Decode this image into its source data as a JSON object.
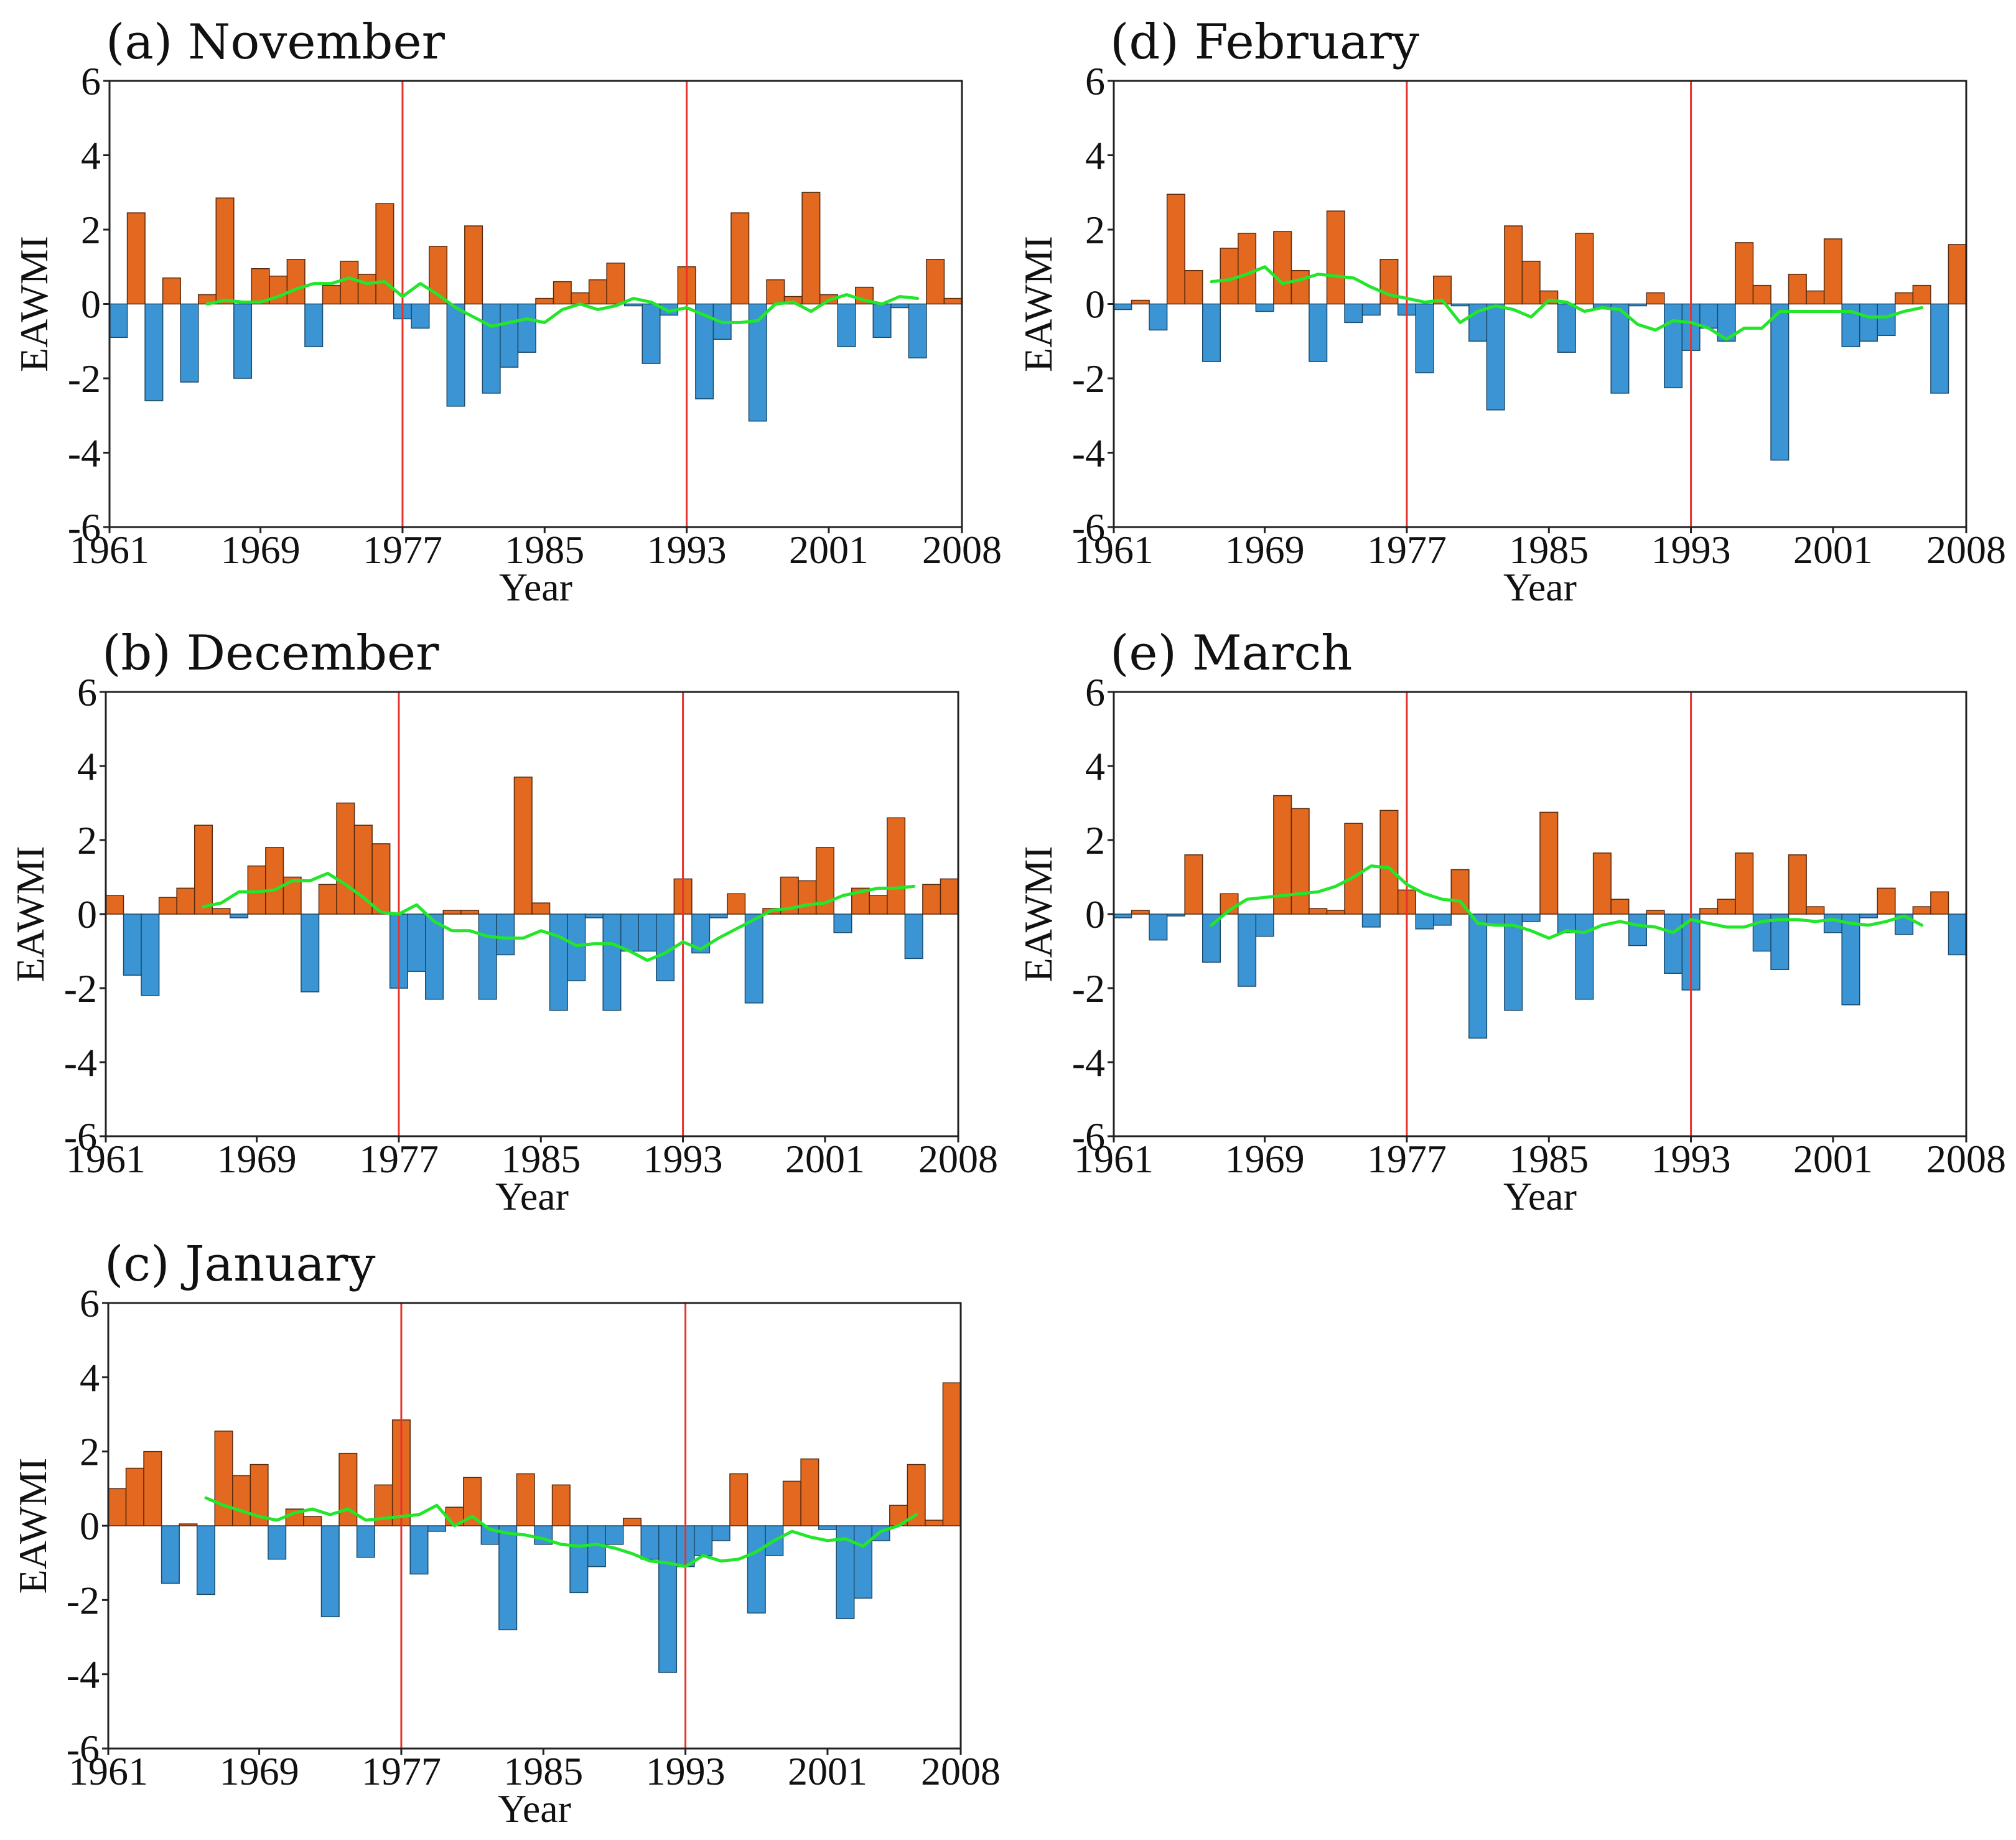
{
  "chart_data": [
    {
      "type": "bar",
      "panel": "a",
      "title": "(a) November",
      "xlabel": "Year",
      "ylabel": "EAWMI",
      "ylim": [
        -6,
        6
      ],
      "yticks": [
        "6",
        "4",
        "2",
        "0",
        "-2",
        "-4",
        "-6"
      ],
      "xticks": [
        "1961",
        "1969",
        "1977",
        "1985",
        "1993",
        "2001",
        "2008"
      ],
      "year_start": 1961,
      "year_end": 2008,
      "vlines": [
        1977,
        1993
      ],
      "colors": {
        "positive": "#e2691f",
        "negative": "#3b95d4",
        "vline": "#e8332c",
        "trend": "#23e62b"
      },
      "values": [
        -0.9,
        2.45,
        -2.6,
        0.7,
        -2.1,
        0.25,
        2.85,
        -2.0,
        0.95,
        0.75,
        1.2,
        -1.15,
        0.5,
        1.15,
        0.8,
        2.7,
        -0.4,
        -0.65,
        1.55,
        -2.75,
        2.1,
        -2.4,
        -1.7,
        -1.3,
        0.15,
        0.6,
        0.3,
        0.65,
        1.1,
        -0.05,
        -1.6,
        -0.3,
        1.0,
        -2.55,
        -0.95,
        2.45,
        -3.15,
        0.65,
        0.2,
        3.0,
        0.25,
        -1.15,
        0.45,
        -0.9,
        -0.1,
        -1.45,
        1.2,
        0.15
      ],
      "trend": {
        "start_year": 1966,
        "values": [
          0.0,
          0.1,
          0.05,
          0.05,
          0.2,
          0.4,
          0.55,
          0.55,
          0.7,
          0.55,
          0.6,
          0.2,
          0.55,
          0.25,
          -0.1,
          -0.35,
          -0.6,
          -0.5,
          -0.4,
          -0.5,
          -0.15,
          0.0,
          -0.15,
          -0.05,
          0.15,
          0.05,
          -0.2,
          -0.1,
          -0.3,
          -0.5,
          -0.5,
          -0.45,
          0.0,
          0.05,
          -0.2,
          0.1,
          0.25,
          0.1,
          0.0,
          0.2,
          0.15
        ]
      }
    },
    {
      "type": "bar",
      "panel": "b",
      "title": "(b) December",
      "xlabel": "Year",
      "ylabel": "EAWMI",
      "ylim": [
        -6,
        6
      ],
      "yticks": [
        "6",
        "4",
        "2",
        "0",
        "-2",
        "-4",
        "-6"
      ],
      "xticks": [
        "1961",
        "1969",
        "1977",
        "1985",
        "1993",
        "2001",
        "2008"
      ],
      "year_start": 1961,
      "year_end": 2008,
      "vlines": [
        1977,
        1993
      ],
      "colors": {
        "positive": "#e2691f",
        "negative": "#3b95d4",
        "vline": "#e8332c",
        "trend": "#23e62b"
      },
      "values": [
        0.5,
        -1.65,
        -2.2,
        0.45,
        0.7,
        2.4,
        0.15,
        -0.1,
        1.3,
        1.8,
        1.0,
        -2.1,
        0.8,
        3.0,
        2.4,
        1.9,
        -2.0,
        -1.55,
        -2.3,
        0.1,
        0.1,
        -2.3,
        -1.1,
        3.7,
        0.3,
        -2.6,
        -1.8,
        -0.1,
        -2.6,
        -1.0,
        -1.0,
        -1.8,
        0.95,
        -1.05,
        -0.1,
        0.55,
        -2.4,
        0.15,
        1.0,
        0.9,
        1.8,
        -0.5,
        0.7,
        0.5,
        2.6,
        -1.2,
        0.8,
        0.95
      ],
      "trend": {
        "start_year": 1966,
        "values": [
          0.2,
          0.3,
          0.6,
          0.6,
          0.65,
          0.9,
          0.9,
          1.1,
          0.8,
          0.45,
          0.05,
          0.0,
          0.25,
          -0.2,
          -0.45,
          -0.45,
          -0.6,
          -0.65,
          -0.65,
          -0.45,
          -0.6,
          -0.85,
          -0.8,
          -0.8,
          -1.0,
          -1.25,
          -1.05,
          -0.75,
          -0.95,
          -0.65,
          -0.4,
          -0.15,
          0.1,
          0.15,
          0.25,
          0.3,
          0.5,
          0.6,
          0.7,
          0.7,
          0.75
        ]
      }
    },
    {
      "type": "bar",
      "panel": "c",
      "title": "(c) January",
      "xlabel": "Year",
      "ylabel": "EAWMI",
      "ylim": [
        -6,
        6
      ],
      "yticks": [
        "6",
        "4",
        "2",
        "0",
        "-2",
        "-4",
        "-6"
      ],
      "xticks": [
        "1961",
        "1969",
        "1977",
        "1985",
        "1993",
        "2001",
        "2008"
      ],
      "year_start": 1961,
      "year_end": 2008,
      "vlines": [
        1977,
        1993
      ],
      "colors": {
        "positive": "#e2691f",
        "negative": "#3b95d4",
        "vline": "#e8332c",
        "trend": "#23e62b"
      },
      "values": [
        1.0,
        1.55,
        2.0,
        -1.55,
        0.05,
        -1.85,
        2.55,
        1.35,
        1.65,
        -0.9,
        0.45,
        0.25,
        -2.45,
        1.95,
        -0.85,
        1.1,
        2.85,
        -1.3,
        -0.15,
        0.5,
        1.3,
        -0.5,
        -2.8,
        1.4,
        -0.5,
        1.1,
        -1.8,
        -1.1,
        -0.5,
        0.2,
        -0.9,
        -3.95,
        -1.1,
        -0.8,
        -0.4,
        1.4,
        -2.35,
        -0.8,
        1.2,
        1.8,
        -0.1,
        -2.5,
        -1.95,
        -0.4,
        0.55,
        1.65,
        0.15,
        3.85
      ],
      "trend": {
        "start_year": 1966,
        "values": [
          0.75,
          0.55,
          0.4,
          0.25,
          0.15,
          0.35,
          0.45,
          0.3,
          0.45,
          0.15,
          0.2,
          0.25,
          0.3,
          0.55,
          0.0,
          0.25,
          -0.1,
          -0.2,
          -0.25,
          -0.35,
          -0.5,
          -0.55,
          -0.5,
          -0.6,
          -0.75,
          -0.95,
          -1.0,
          -1.1,
          -0.8,
          -0.95,
          -0.9,
          -0.7,
          -0.4,
          -0.15,
          -0.3,
          -0.4,
          -0.35,
          -0.55,
          -0.15,
          0.0,
          0.3
        ]
      }
    },
    {
      "type": "bar",
      "panel": "d",
      "title": "(d) February",
      "xlabel": "Year",
      "ylabel": "EAWMI",
      "ylim": [
        -6,
        6
      ],
      "yticks": [
        "6",
        "4",
        "2",
        "0",
        "-2",
        "-4",
        "-6"
      ],
      "xticks": [
        "1961",
        "1969",
        "1977",
        "1985",
        "1993",
        "2001",
        "2008"
      ],
      "year_start": 1961,
      "year_end": 2008,
      "vlines": [
        1977,
        1993
      ],
      "colors": {
        "positive": "#e2691f",
        "negative": "#3b95d4",
        "vline": "#e8332c",
        "trend": "#23e62b"
      },
      "values": [
        -0.15,
        0.1,
        -0.7,
        2.95,
        0.9,
        -1.55,
        1.5,
        1.9,
        -0.2,
        1.95,
        0.9,
        -1.55,
        2.5,
        -0.5,
        -0.3,
        1.2,
        -0.3,
        -1.85,
        0.75,
        -0.05,
        -1.0,
        -2.85,
        2.1,
        1.15,
        0.35,
        -1.3,
        1.9,
        -0.1,
        -2.4,
        -0.05,
        0.3,
        -2.25,
        -1.25,
        -0.65,
        -1.0,
        1.65,
        0.5,
        -4.2,
        0.8,
        0.35,
        1.75,
        -1.15,
        -1.0,
        -0.85,
        0.3,
        0.5,
        -2.4,
        1.6
      ],
      "trend": {
        "start_year": 1966,
        "values": [
          0.6,
          0.65,
          0.8,
          1.0,
          0.55,
          0.65,
          0.8,
          0.75,
          0.7,
          0.45,
          0.25,
          0.15,
          0.05,
          0.1,
          -0.5,
          -0.2,
          -0.05,
          -0.15,
          -0.35,
          0.1,
          0.05,
          -0.2,
          -0.1,
          -0.15,
          -0.55,
          -0.7,
          -0.45,
          -0.5,
          -0.65,
          -0.95,
          -0.65,
          -0.65,
          -0.2,
          -0.2,
          -0.2,
          -0.2,
          -0.2,
          -0.35,
          -0.35,
          -0.2,
          -0.1
        ]
      }
    },
    {
      "type": "bar",
      "panel": "e",
      "title": "(e) March",
      "xlabel": "Year",
      "ylabel": "EAWMI",
      "ylim": [
        -6,
        6
      ],
      "yticks": [
        "6",
        "4",
        "2",
        "0",
        "-2",
        "-4",
        "-6"
      ],
      "xticks": [
        "1961",
        "1969",
        "1977",
        "1985",
        "1993",
        "2001",
        "2008"
      ],
      "year_start": 1961,
      "year_end": 2008,
      "vlines": [
        1977,
        1993
      ],
      "colors": {
        "positive": "#e2691f",
        "negative": "#3b95d4",
        "vline": "#e8332c",
        "trend": "#23e62b"
      },
      "values": [
        -0.1,
        0.1,
        -0.7,
        -0.05,
        1.6,
        -1.3,
        0.55,
        -1.95,
        -0.6,
        3.2,
        2.85,
        0.15,
        0.1,
        2.45,
        -0.35,
        2.8,
        0.65,
        -0.4,
        -0.3,
        1.2,
        -3.35,
        -0.3,
        -2.6,
        -0.2,
        2.75,
        -0.5,
        -2.3,
        1.65,
        0.4,
        -0.85,
        0.1,
        -1.6,
        -2.05,
        0.15,
        0.4,
        1.65,
        -1.0,
        -1.5,
        1.6,
        0.2,
        -0.5,
        -2.45,
        -0.1,
        0.7,
        -0.55,
        0.2,
        0.6,
        -1.1
      ],
      "trend": {
        "start_year": 1966,
        "values": [
          -0.3,
          0.1,
          0.4,
          0.45,
          0.5,
          0.55,
          0.6,
          0.75,
          1.0,
          1.3,
          1.25,
          0.8,
          0.55,
          0.4,
          0.35,
          -0.25,
          -0.3,
          -0.3,
          -0.45,
          -0.65,
          -0.45,
          -0.5,
          -0.3,
          -0.2,
          -0.3,
          -0.35,
          -0.5,
          -0.15,
          -0.25,
          -0.35,
          -0.35,
          -0.2,
          -0.15,
          -0.15,
          -0.2,
          -0.15,
          -0.25,
          -0.3,
          -0.2,
          -0.05,
          -0.3
        ]
      }
    }
  ]
}
